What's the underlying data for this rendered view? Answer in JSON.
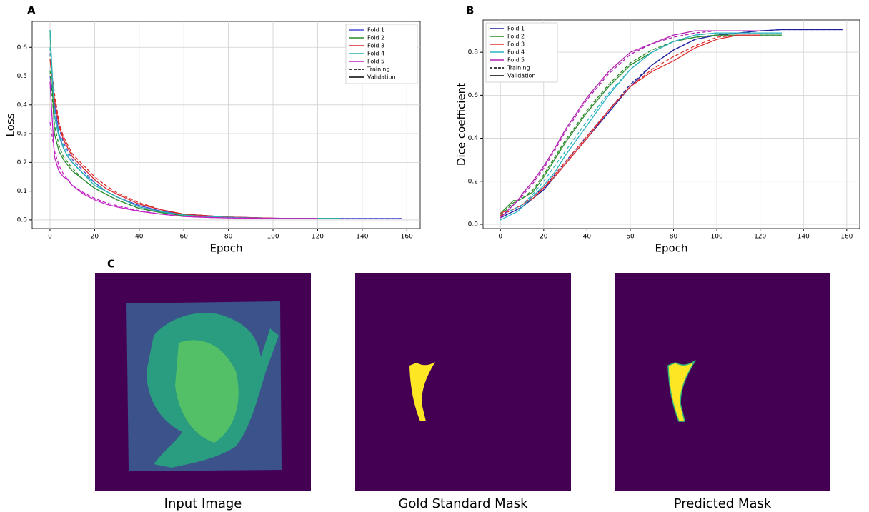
{
  "chart_data": [
    {
      "type": "line",
      "panel_label": "A",
      "xlabel": "Epoch",
      "ylabel": "Loss",
      "grid": true,
      "legend": "upper right",
      "xlim": [
        -8,
        166
      ],
      "xticks": [
        0,
        20,
        40,
        60,
        80,
        100,
        120,
        140,
        160
      ],
      "ylim": [
        -0.03,
        0.69
      ],
      "yticks": [
        {
          "value": 0,
          "label": "0.0"
        },
        0.1,
        0.2,
        0.3,
        0.4,
        0.5,
        0.6
      ],
      "x": [
        0,
        2,
        4,
        6,
        8,
        10,
        15,
        20,
        25,
        30,
        40,
        50,
        60,
        70,
        80,
        90,
        100,
        110,
        120,
        130,
        140,
        150,
        158
      ],
      "line_styles": [
        {
          "name": "Training",
          "dash": "dashed"
        },
        {
          "name": "Validation",
          "dash": "solid"
        }
      ],
      "series": [
        {
          "name": "Fold 1",
          "color": "#4b4bd6",
          "values": [
            0.5,
            0.4,
            0.3,
            0.25,
            0.22,
            0.2,
            0.16,
            0.13,
            0.1,
            0.08,
            0.05,
            0.03,
            0.02,
            0.015,
            0.01,
            0.008,
            0.006,
            0.005,
            0.005,
            0.005,
            0.005,
            0.005,
            0.005
          ],
          "training_values": [
            0.58,
            0.42,
            0.32,
            0.27,
            0.24,
            0.21,
            0.17,
            0.13,
            0.1,
            0.08,
            0.05,
            0.03,
            0.02,
            0.015,
            0.01,
            0.008,
            0.006,
            0.005,
            0.005,
            0.005,
            0.005,
            0.005,
            0.005
          ]
        },
        {
          "name": "Fold 2",
          "color": "#2a8a2a",
          "values": [
            0.66,
            0.3,
            0.24,
            0.21,
            0.19,
            0.17,
            0.14,
            0.11,
            0.09,
            0.07,
            0.04,
            0.025,
            0.015,
            0.01,
            0.008,
            0.006,
            0.005,
            0.005,
            0.005,
            0.005,
            null,
            null,
            null
          ],
          "training_values": [
            0.52,
            0.33,
            0.26,
            0.22,
            0.2,
            0.18,
            0.14,
            0.11,
            0.09,
            0.07,
            0.04,
            0.025,
            0.015,
            0.01,
            0.008,
            0.006,
            0.005,
            0.005,
            0.005,
            0.005,
            null,
            null,
            null
          ]
        },
        {
          "name": "Fold 3",
          "color": "#d62728",
          "values": [
            0.56,
            0.42,
            0.33,
            0.28,
            0.25,
            0.22,
            0.18,
            0.14,
            0.11,
            0.09,
            0.055,
            0.035,
            0.02,
            0.015,
            0.01,
            0.008,
            0.006,
            0.005,
            0.005,
            null,
            null,
            null,
            null
          ],
          "training_values": [
            0.56,
            0.44,
            0.34,
            0.29,
            0.26,
            0.23,
            0.19,
            0.15,
            0.12,
            0.095,
            0.06,
            0.035,
            0.02,
            0.015,
            0.01,
            0.008,
            0.006,
            0.005,
            0.005,
            null,
            null,
            null,
            null
          ]
        },
        {
          "name": "Fold 4",
          "color": "#2bb3b3",
          "values": [
            0.66,
            0.36,
            0.29,
            0.25,
            0.22,
            0.2,
            0.16,
            0.12,
            0.1,
            0.08,
            0.045,
            0.028,
            0.017,
            0.012,
            0.009,
            0.007,
            0.005,
            0.005,
            0.005,
            0.005,
            null,
            null,
            null
          ],
          "training_values": [
            0.6,
            0.38,
            0.3,
            0.26,
            0.23,
            0.2,
            0.16,
            0.13,
            0.1,
            0.08,
            0.045,
            0.028,
            0.017,
            0.012,
            0.009,
            0.007,
            0.005,
            0.005,
            0.005,
            0.005,
            null,
            null,
            null
          ]
        },
        {
          "name": "Fold 5",
          "color": "#c21fc2",
          "values": [
            0.48,
            0.22,
            0.17,
            0.15,
            0.14,
            0.12,
            0.09,
            0.07,
            0.055,
            0.045,
            0.03,
            0.02,
            0.012,
            0.009,
            0.007,
            0.006,
            0.005,
            0.005,
            0.005,
            null,
            null,
            null,
            null
          ],
          "training_values": [
            0.34,
            0.24,
            0.19,
            0.16,
            0.14,
            0.12,
            0.095,
            0.075,
            0.06,
            0.05,
            0.032,
            0.02,
            0.012,
            0.009,
            0.007,
            0.006,
            0.005,
            0.005,
            0.005,
            null,
            null,
            null,
            null
          ]
        }
      ]
    },
    {
      "type": "line",
      "panel_label": "B",
      "xlabel": "Epoch",
      "ylabel": "Dice coefficient",
      "grid": true,
      "legend": "upper left",
      "xlim": [
        -8,
        166
      ],
      "xticks": [
        0,
        20,
        40,
        60,
        80,
        100,
        120,
        140,
        160
      ],
      "ylim": [
        -0.02,
        0.95
      ],
      "yticks": [
        {
          "value": 0,
          "label": "0.0"
        },
        0.2,
        0.4,
        0.6,
        0.8
      ],
      "x": [
        0,
        2,
        4,
        6,
        8,
        10,
        15,
        20,
        25,
        30,
        40,
        50,
        60,
        70,
        80,
        90,
        100,
        110,
        120,
        130,
        140,
        150,
        158
      ],
      "line_styles": [
        {
          "name": "Training",
          "dash": "dashed"
        },
        {
          "name": "Validation",
          "dash": "solid"
        }
      ],
      "series": [
        {
          "name": "Fold 1",
          "color": "#1f1f9e",
          "values": [
            0.03,
            0.04,
            0.05,
            0.06,
            0.07,
            0.08,
            0.12,
            0.16,
            0.22,
            0.28,
            0.4,
            0.52,
            0.64,
            0.74,
            0.81,
            0.86,
            0.88,
            0.89,
            0.9,
            0.905,
            0.905,
            0.905,
            0.905
          ],
          "training_values": [
            0.03,
            0.04,
            0.05,
            0.06,
            0.07,
            0.09,
            0.13,
            0.17,
            0.23,
            0.29,
            0.41,
            0.53,
            0.65,
            0.74,
            0.81,
            0.86,
            0.88,
            0.89,
            0.9,
            0.905,
            0.905,
            0.905,
            0.905
          ]
        },
        {
          "name": "Fold 2",
          "color": "#2a8a2a",
          "values": [
            0.05,
            0.07,
            0.09,
            0.11,
            0.11,
            0.12,
            0.15,
            0.22,
            0.3,
            0.38,
            0.52,
            0.64,
            0.74,
            0.8,
            0.85,
            0.87,
            0.88,
            0.88,
            0.88,
            0.88,
            null,
            null,
            null
          ],
          "training_values": [
            0.04,
            0.06,
            0.08,
            0.1,
            0.11,
            0.12,
            0.16,
            0.23,
            0.31,
            0.39,
            0.53,
            0.65,
            0.75,
            0.81,
            0.85,
            0.87,
            0.88,
            0.88,
            0.88,
            0.88,
            null,
            null,
            null
          ]
        },
        {
          "name": "Fold 3",
          "color": "#e03030",
          "values": [
            0.05,
            0.06,
            0.06,
            0.07,
            0.08,
            0.09,
            0.12,
            0.17,
            0.22,
            0.28,
            0.4,
            0.53,
            0.64,
            0.71,
            0.76,
            0.82,
            0.86,
            0.88,
            0.88,
            null,
            null,
            null,
            null
          ],
          "training_values": [
            0.04,
            0.05,
            0.06,
            0.07,
            0.08,
            0.09,
            0.13,
            0.17,
            0.23,
            0.29,
            0.41,
            0.53,
            0.64,
            0.72,
            0.78,
            0.83,
            0.87,
            0.88,
            0.88,
            null,
            null,
            null,
            null
          ]
        },
        {
          "name": "Fold 4",
          "color": "#2bb3c3",
          "values": [
            0.02,
            0.03,
            0.04,
            0.05,
            0.06,
            0.08,
            0.13,
            0.18,
            0.24,
            0.32,
            0.46,
            0.6,
            0.72,
            0.8,
            0.85,
            0.88,
            0.89,
            0.89,
            0.89,
            0.89,
            null,
            null,
            null
          ],
          "training_values": [
            0.03,
            0.05,
            0.06,
            0.07,
            0.08,
            0.09,
            0.14,
            0.2,
            0.27,
            0.34,
            0.48,
            0.61,
            0.72,
            0.8,
            0.85,
            0.88,
            0.89,
            0.89,
            0.89,
            0.89,
            null,
            null,
            null
          ]
        },
        {
          "name": "Fold 5",
          "color": "#b020b0",
          "values": [
            0.03,
            0.05,
            0.07,
            0.09,
            0.11,
            0.14,
            0.2,
            0.27,
            0.35,
            0.44,
            0.59,
            0.71,
            0.8,
            0.84,
            0.88,
            0.9,
            0.9,
            0.9,
            0.9,
            null,
            null,
            null,
            null
          ],
          "training_values": [
            0.03,
            0.05,
            0.07,
            0.09,
            0.11,
            0.13,
            0.19,
            0.26,
            0.34,
            0.43,
            0.58,
            0.7,
            0.79,
            0.84,
            0.87,
            0.89,
            0.9,
            0.9,
            0.9,
            null,
            null,
            null,
            null
          ]
        }
      ]
    }
  ],
  "panel_c": {
    "label": "C",
    "captions": [
      "Input Image",
      "Gold Standard Mask",
      "Predicted Mask"
    ]
  }
}
